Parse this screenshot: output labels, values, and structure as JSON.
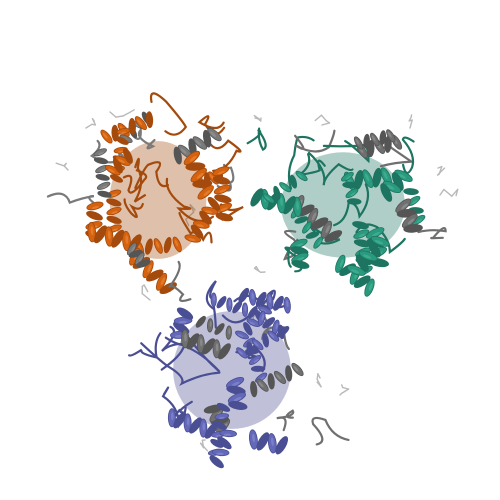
{
  "image": {
    "subject": "protein-trimer-ribbon-cartoon",
    "background": "#ffffff"
  },
  "chains": [
    {
      "name": "chain-a",
      "color": "#d5620f",
      "shade": "#a34a0c",
      "highlight": "#f08a3a",
      "accent": "#7a7a7a"
    },
    {
      "name": "chain-b",
      "color": "#2a9a7e",
      "shade": "#1d7460",
      "highlight": "#49b899",
      "accent": "#6f6f6f"
    },
    {
      "name": "chain-c",
      "color": "#6468b8",
      "shade": "#4a4e93",
      "highlight": "#8a8dd2",
      "accent": "#707070"
    }
  ],
  "ligand_color": "#b9b9b9"
}
